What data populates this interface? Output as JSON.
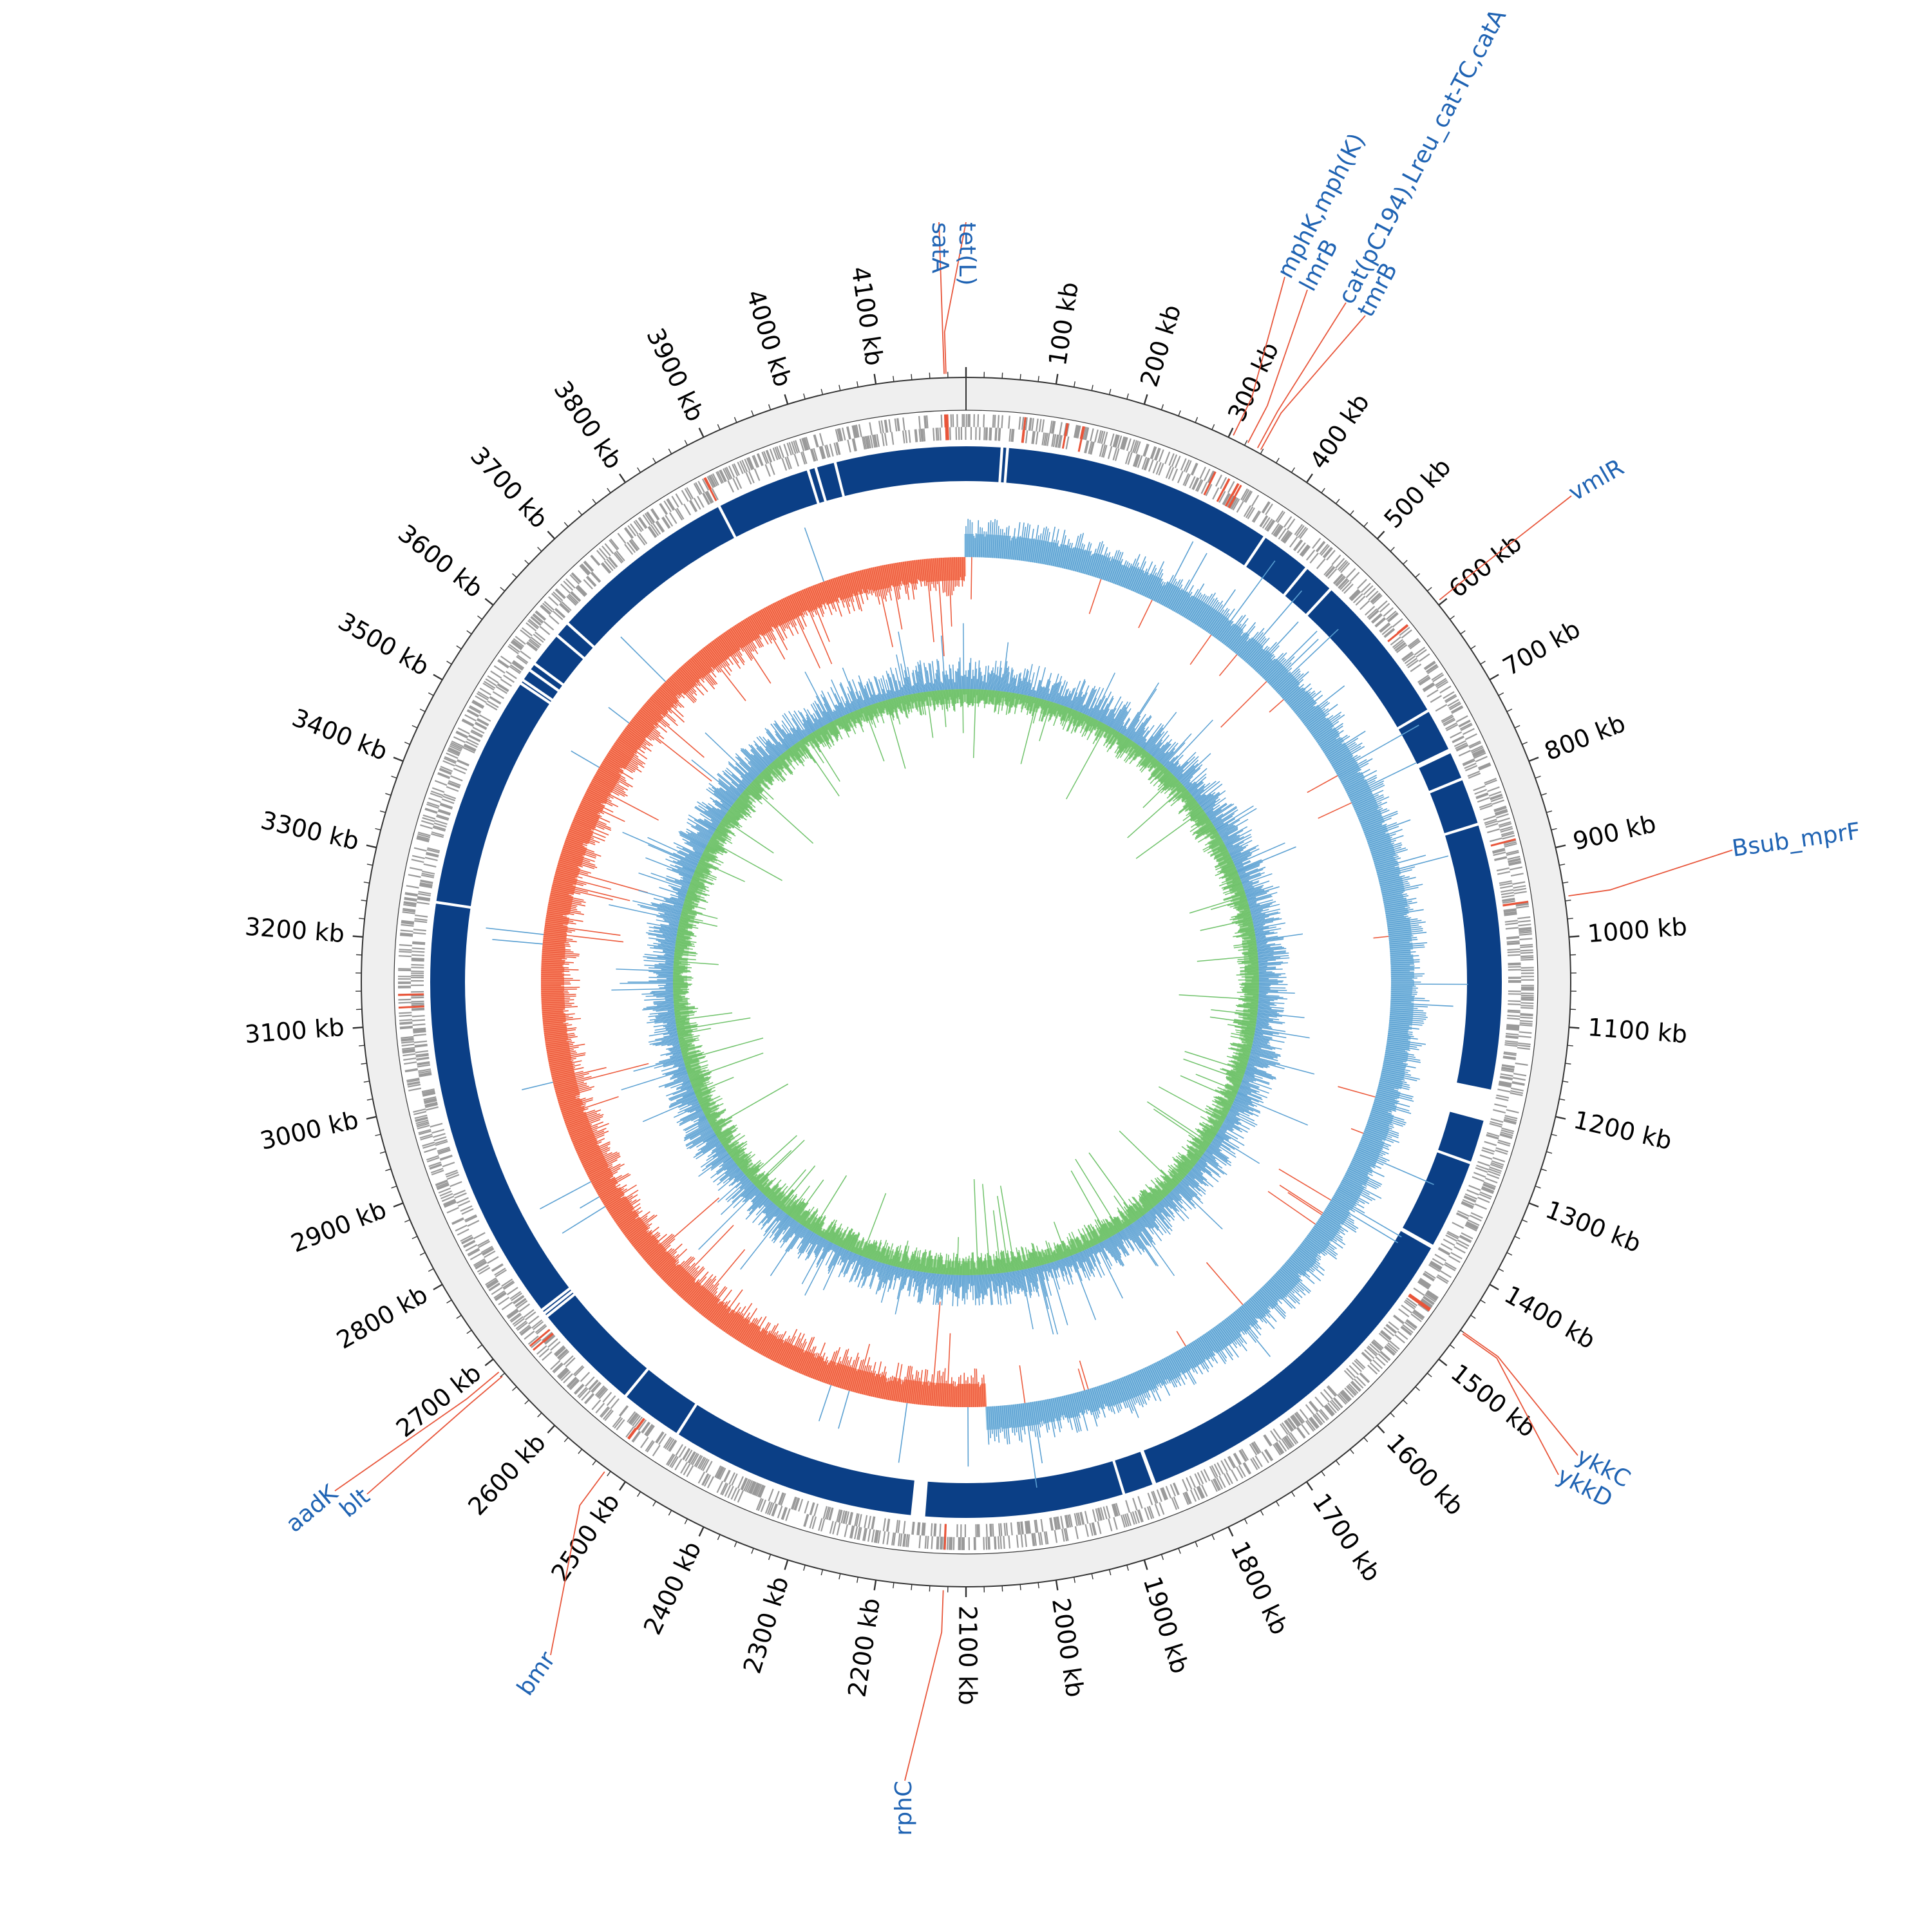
{
  "colors": {
    "background": "#ffffff",
    "outer_band": "#efefef",
    "ring_line": "#333333",
    "feature_gray": "#9a9a9a",
    "feature_red": "#e8553a",
    "contig_blue": "#0b3f86",
    "gc_skew_positive": "#8fc3e3",
    "gc_skew_positive_line": "#5aa0d2",
    "gc_skew_negative": "#fa8a6a",
    "gc_skew_negative_line": "#ec5a3c",
    "gc_content_blue": "#5aa0d2",
    "gc_content_green": "#6fc26a",
    "label_line": "#e8553a",
    "label_text": "#1f63b3",
    "tick_text": "#000000"
  },
  "genome": {
    "length_kb": 4200,
    "tick_unit": "kb"
  },
  "axis": {
    "tick_labels": [
      "100 kb",
      "200 kb",
      "300 kb",
      "400 kb",
      "500 kb",
      "600 kb",
      "700 kb",
      "800 kb",
      "900 kb",
      "1000 kb",
      "1100 kb",
      "1200 kb",
      "1300 kb",
      "1400 kb",
      "1500 kb",
      "1600 kb",
      "1700 kb",
      "1800 kb",
      "1900 kb",
      "2000 kb",
      "2100 kb",
      "2200 kb",
      "2300 kb",
      "2400 kb",
      "2500 kb",
      "2600 kb",
      "2700 kb",
      "2800 kb",
      "2900 kb",
      "3000 kb",
      "3100 kb",
      "3200 kb",
      "3300 kb",
      "3400 kb",
      "3500 kb",
      "3600 kb",
      "3700 kb",
      "3800 kb",
      "3900 kb",
      "4000 kb",
      "4100 kb"
    ],
    "tick_positions_kb": [
      100,
      200,
      300,
      400,
      500,
      600,
      700,
      800,
      900,
      1000,
      1100,
      1200,
      1300,
      1400,
      1500,
      1600,
      1700,
      1800,
      1900,
      2000,
      2100,
      2200,
      2300,
      2400,
      2500,
      2600,
      2700,
      2800,
      2900,
      3000,
      3100,
      3200,
      3300,
      3400,
      3500,
      3600,
      3700,
      3800,
      3900,
      4000,
      4100
    ]
  },
  "contig_gaps_kb": [
    45,
    52,
    395,
    460,
    500,
    695,
    752,
    790,
    850,
    1205,
    1280,
    1395,
    1860,
    1900,
    2160,
    2480,
    2560,
    2700,
    2705,
    2710,
    3250,
    3545,
    3550,
    3565,
    3575,
    3620,
    3640,
    3880,
    4000,
    4010,
    4035
  ],
  "gene_labels": [
    {
      "text": "tet(L)",
      "position_kb": 4178
    },
    {
      "text": "satA",
      "position_kb": 4176
    },
    {
      "text": "mphK,mph(K)",
      "position_kb": 304
    },
    {
      "text": "lmrB",
      "position_kb": 322
    },
    {
      "text": "cat(pC194),Lreu_cat-TC,catA",
      "position_kb": 334
    },
    {
      "text": "tmrB",
      "position_kb": 338
    },
    {
      "text": "vmlR",
      "position_kb": 596
    },
    {
      "text": "Bsub_mprF",
      "position_kb": 955
    },
    {
      "text": "ykkC",
      "position_kb": 1460
    },
    {
      "text": "ykkD",
      "position_kb": 1462
    },
    {
      "text": "rphC",
      "position_kb": 2125
    },
    {
      "text": "bmr",
      "position_kb": 2525
    },
    {
      "text": "aadK",
      "position_kb": 2685
    },
    {
      "text": "blt",
      "position_kb": 2679
    }
  ]
}
